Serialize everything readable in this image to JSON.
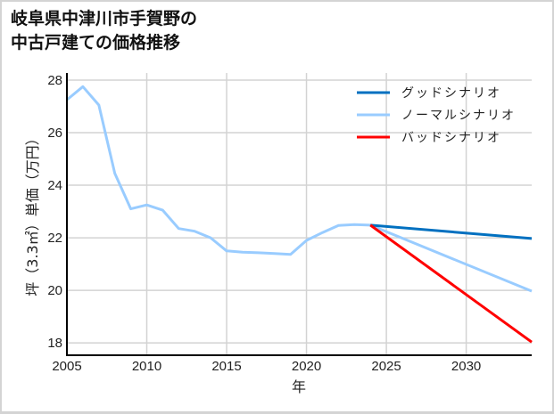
{
  "title": {
    "line1": "岐阜県中津川市手賀野の",
    "line2": "中古戸建ての価格推移"
  },
  "chart_data": {
    "type": "line",
    "title": "岐阜県中津川市手賀野の中古戸建ての価格推移",
    "xlabel": "年",
    "ylabel": "坪（3.3㎡）単価（万円）",
    "xlim": [
      2005,
      2034.1
    ],
    "ylim": [
      17.53,
      28.27
    ],
    "xticks": [
      2005,
      2010,
      2015,
      2020,
      2025,
      2030
    ],
    "yticks": [
      18,
      20,
      22,
      24,
      26,
      28
    ],
    "grid": true,
    "legend_position": "upper right",
    "series": [
      {
        "name": "ノーマルシナリオ",
        "role": "history",
        "color": "#99ccff",
        "x": [
          2005,
          2006,
          2007,
          2008,
          2009,
          2010,
          2011,
          2012,
          2013,
          2014,
          2015,
          2016,
          2017,
          2018,
          2019,
          2020,
          2021,
          2022,
          2023,
          2024
        ],
        "y": [
          27.25,
          27.75,
          27.05,
          24.45,
          23.1,
          23.25,
          23.05,
          22.35,
          22.25,
          22.0,
          21.5,
          21.45,
          21.43,
          21.4,
          21.37,
          21.9,
          22.2,
          22.47,
          22.5,
          22.48
        ]
      },
      {
        "name": "グッドシナリオ",
        "color": "#0070c0",
        "x": [
          2024,
          2034.1
        ],
        "y": [
          22.48,
          21.97
        ]
      },
      {
        "name": "ノーマルシナリオ",
        "color": "#99ccff",
        "x": [
          2024,
          2034.1
        ],
        "y": [
          22.48,
          19.97
        ]
      },
      {
        "name": "バッドシナリオ",
        "color": "#ff0000",
        "x": [
          2024,
          2034.1
        ],
        "y": [
          22.48,
          18.03
        ]
      }
    ],
    "legend": [
      {
        "label": "グッドシナリオ",
        "color": "#0070c0"
      },
      {
        "label": "ノーマルシナリオ",
        "color": "#99ccff"
      },
      {
        "label": "バッドシナリオ",
        "color": "#ff0000"
      }
    ]
  }
}
